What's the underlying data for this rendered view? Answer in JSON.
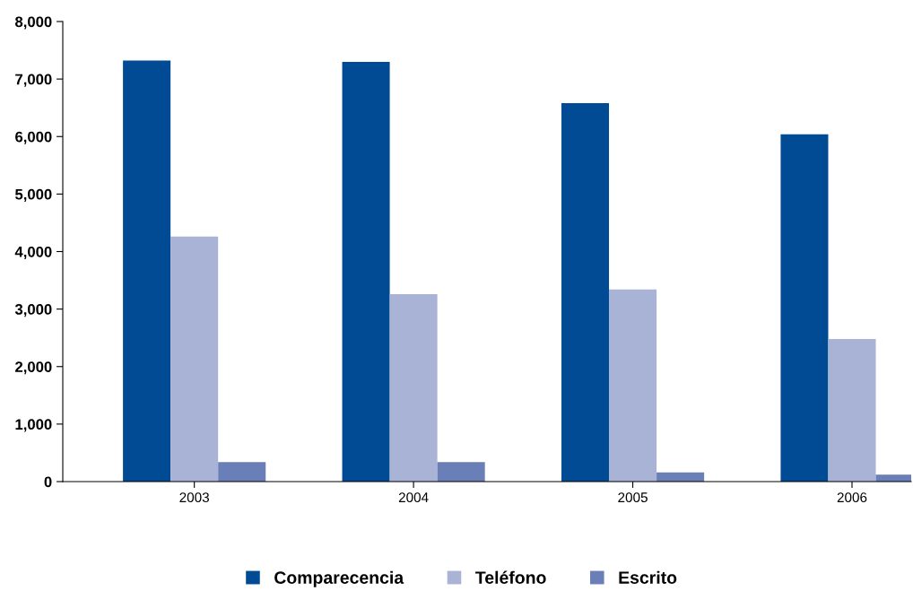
{
  "chart_data": {
    "type": "bar",
    "categories": [
      "2003",
      "2004",
      "2005",
      "2006"
    ],
    "series": [
      {
        "name": "Comparecencia",
        "color": "#004b93",
        "values": [
          7320,
          7300,
          6580,
          6040
        ]
      },
      {
        "name": "Teléfono",
        "color": "#a8b3d5",
        "values": [
          4260,
          3260,
          3340,
          2480
        ]
      },
      {
        "name": "Escrito",
        "color": "#6a7fb8",
        "values": [
          340,
          340,
          160,
          120
        ]
      }
    ],
    "ylim": [
      0,
      8000
    ],
    "yticks": [
      0,
      {
        "value": 1000,
        "label": "1,000"
      },
      {
        "value": 2000,
        "label": "2,000"
      },
      {
        "value": 3000,
        "label": "3,000"
      },
      {
        "value": 4000,
        "label": "4,000"
      },
      {
        "value": 5000,
        "label": "5,000"
      },
      {
        "value": 6000,
        "label": "6,000"
      },
      {
        "value": 7000,
        "label": "7,000"
      },
      {
        "value": 8000,
        "label": "8,000"
      }
    ],
    "grid": false,
    "legend": "bottom"
  }
}
